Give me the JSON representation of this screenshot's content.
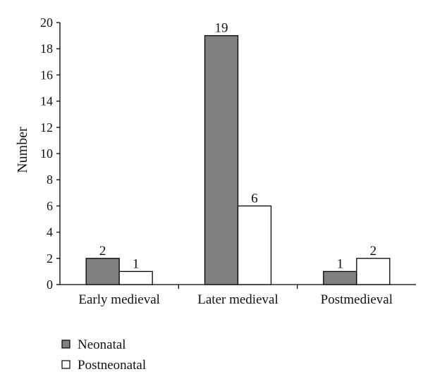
{
  "chart_data": {
    "type": "bar",
    "title": "",
    "xlabel": "",
    "ylabel": "Number",
    "categories": [
      "Early medieval",
      "Later medieval",
      "Postmedieval"
    ],
    "series": [
      {
        "name": "Neonatal",
        "values": [
          2,
          19,
          1
        ],
        "color": "#808080"
      },
      {
        "name": "Postneonatal",
        "values": [
          1,
          6,
          2
        ],
        "color": "#ffffff"
      }
    ],
    "ylim": [
      0,
      20
    ],
    "yticks": [
      0,
      2,
      4,
      6,
      8,
      10,
      12,
      14,
      16,
      18,
      20
    ],
    "grid": false,
    "legend_position": "bottom-left",
    "data_labels": true
  }
}
